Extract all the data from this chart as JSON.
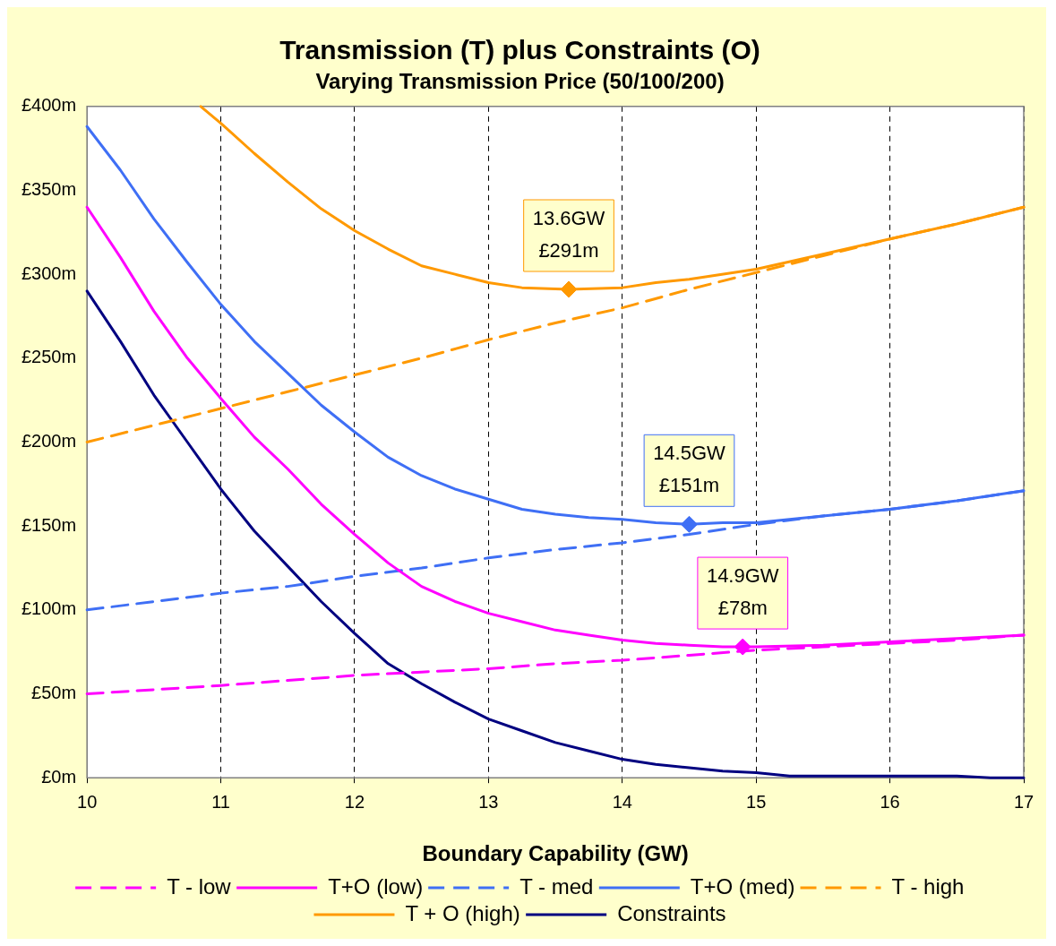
{
  "chart_data": {
    "type": "line",
    "title": "Transmission (T) plus Constraints (O)",
    "subtitle": "Varying Transmission Price (50/100/200)",
    "xlabel": "Boundary Capability (GW)",
    "xlim": [
      10,
      17
    ],
    "xticks": [
      10,
      11,
      12,
      13,
      14,
      15,
      16,
      17
    ],
    "ylim": [
      0,
      400
    ],
    "yticks": [
      {
        "value": 0,
        "label": "£0m"
      },
      {
        "value": 50,
        "label": "£50m"
      },
      {
        "value": 100,
        "label": "£100m"
      },
      {
        "value": 150,
        "label": "£150m"
      },
      {
        "value": 200,
        "label": "£200m"
      },
      {
        "value": 250,
        "label": "£250m"
      },
      {
        "value": 300,
        "label": "£300m"
      },
      {
        "value": 350,
        "label": "£350m"
      },
      {
        "value": 400,
        "label": "£400m"
      }
    ],
    "grid": "x",
    "legend": "bottom",
    "marker": "none",
    "series": [
      {
        "name": "T - low",
        "color": "#ff00ff",
        "line_style": "dashed",
        "x": [
          10,
          11,
          11.5,
          12,
          12.5,
          13,
          13.5,
          14,
          14.5,
          15,
          15.5,
          16,
          16.5,
          17
        ],
        "values": [
          50,
          55,
          58,
          61,
          63,
          65,
          68,
          70,
          73,
          76,
          78,
          80,
          82,
          85
        ]
      },
      {
        "name": "T+O (low)",
        "color": "#ff00ff",
        "line_style": "solid",
        "x": [
          10,
          10.25,
          10.5,
          10.75,
          11,
          11.25,
          11.5,
          11.75,
          12,
          12.25,
          12.5,
          12.75,
          13,
          13.25,
          13.5,
          13.75,
          14,
          14.25,
          14.5,
          14.75,
          15,
          15.5,
          16,
          16.5,
          17
        ],
        "values": [
          340,
          310,
          278,
          250,
          226,
          203,
          184,
          163,
          145,
          128,
          114,
          105,
          98,
          93,
          88,
          85,
          82,
          80,
          79,
          78,
          78,
          79,
          81,
          83,
          85
        ]
      },
      {
        "name": "T - med",
        "color": "#3f6ff5",
        "line_style": "dashed",
        "x": [
          10,
          11,
          11.5,
          12,
          12.5,
          13,
          13.5,
          14,
          14.5,
          15,
          15.5,
          16,
          16.5,
          17
        ],
        "values": [
          100,
          110,
          114,
          120,
          125,
          131,
          136,
          140,
          145,
          151,
          156,
          160,
          165,
          171
        ]
      },
      {
        "name": "T+O (med)",
        "color": "#3f6ff5",
        "line_style": "solid",
        "x": [
          10,
          10.25,
          10.5,
          10.75,
          11,
          11.25,
          11.5,
          11.75,
          12,
          12.25,
          12.5,
          12.75,
          13,
          13.25,
          13.5,
          13.75,
          14,
          14.25,
          14.5,
          14.75,
          15,
          15.5,
          16,
          16.5,
          17
        ],
        "values": [
          388,
          362,
          333,
          307,
          282,
          260,
          241,
          222,
          206,
          191,
          180,
          172,
          166,
          160,
          157,
          155,
          154,
          152,
          151,
          152,
          152,
          156,
          160,
          165,
          171
        ]
      },
      {
        "name": "T - high",
        "color": "#ff9900",
        "line_style": "dashed",
        "x": [
          10,
          11,
          11.5,
          12,
          12.5,
          13,
          13.5,
          14,
          14.5,
          15,
          15.5,
          16,
          16.5,
          17
        ],
        "values": [
          200,
          220,
          230,
          240,
          250,
          261,
          271,
          280,
          291,
          301,
          311,
          321,
          330,
          340
        ]
      },
      {
        "name": "T + O (high)",
        "color": "#ff9900",
        "line_style": "solid",
        "x": [
          10.85,
          11,
          11.25,
          11.5,
          11.75,
          12,
          12.25,
          12.5,
          12.75,
          13,
          13.25,
          13.6,
          14,
          14.25,
          14.5,
          15,
          15.5,
          16,
          16.5,
          17
        ],
        "values": [
          400,
          390,
          372,
          355,
          339,
          326,
          315,
          305,
          300,
          295,
          292,
          291,
          292,
          295,
          297,
          303,
          312,
          321,
          330,
          340
        ]
      },
      {
        "name": "Constraints",
        "color": "#000080",
        "line_style": "solid",
        "x": [
          10,
          10.25,
          10.5,
          10.75,
          11,
          11.25,
          11.5,
          11.75,
          12,
          12.25,
          12.5,
          12.75,
          13,
          13.25,
          13.5,
          13.75,
          14,
          14.25,
          14.5,
          14.75,
          15,
          15.25,
          15.5,
          16,
          16.5,
          16.75,
          17
        ],
        "values": [
          290,
          260,
          228,
          200,
          172,
          147,
          126,
          105,
          86,
          68,
          56,
          45,
          35,
          28,
          21,
          16,
          11,
          8,
          6,
          4,
          3,
          1,
          1,
          1,
          1,
          0,
          0
        ]
      },
      {
        "type": "scatter",
        "marker": "diamond",
        "color": "#ff9900",
        "x": [
          13.6
        ],
        "values": [
          291
        ],
        "value_labels": [
          "13.6GW\n£291m"
        ]
      },
      {
        "type": "scatter",
        "marker": "diamond",
        "color": "#3f6ff5",
        "x": [
          14.5
        ],
        "values": [
          151
        ],
        "value_labels": [
          "14.5GW\n£151m"
        ]
      },
      {
        "type": "scatter",
        "marker": "diamond",
        "color": "#ff00ff",
        "x": [
          14.9
        ],
        "values": [
          78
        ],
        "value_labels": [
          "14.9GW\n£78m"
        ]
      }
    ]
  }
}
